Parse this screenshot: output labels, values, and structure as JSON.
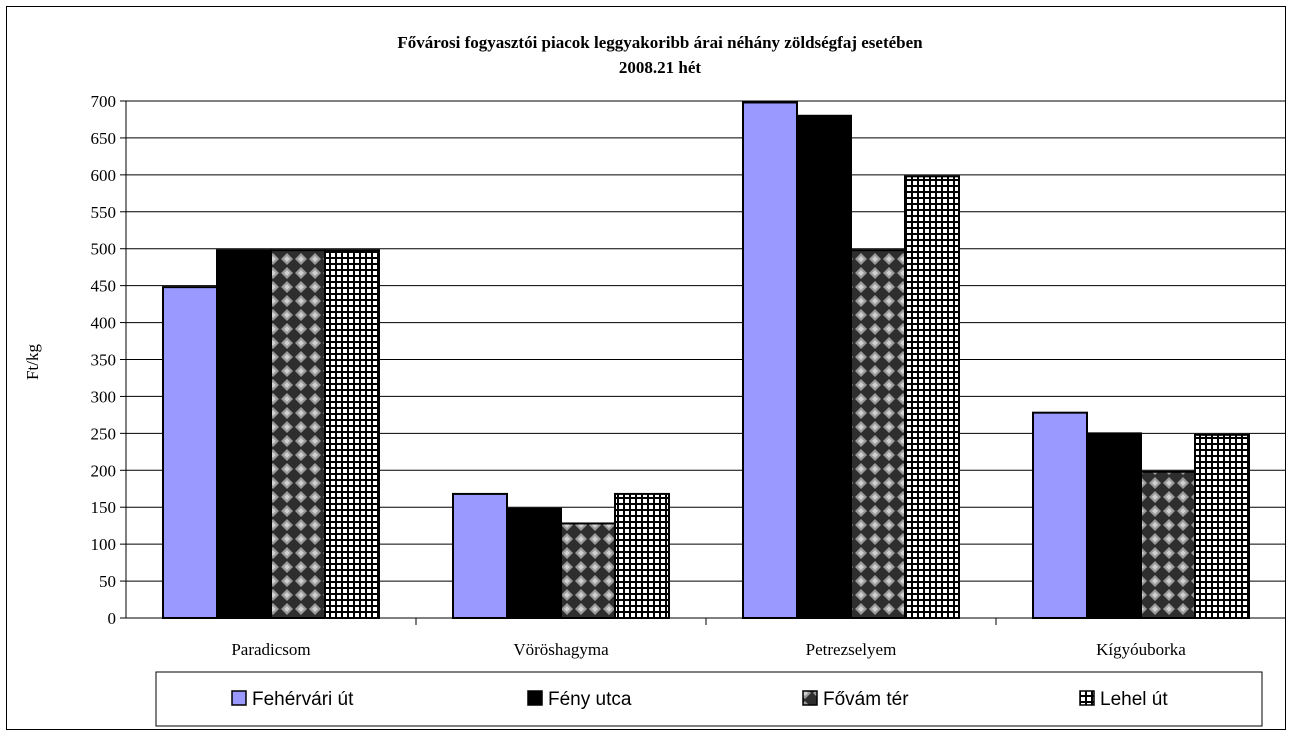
{
  "chart_data": {
    "type": "bar",
    "title": "Fővárosi fogyasztói piacok leggyakoribb árai néhány zöldségfaj esetében",
    "subtitle": "2008.21 hét",
    "xlabel": "",
    "ylabel": "Ft/kg",
    "ylim": [
      0,
      700
    ],
    "ytick_step": 50,
    "grid": true,
    "legend_position": "bottom",
    "categories": [
      "Paradicsom",
      "Vöröshagyma",
      "Petrezselyem",
      "Kígyóuborka"
    ],
    "series": [
      {
        "name": "Fehérvári út",
        "values": [
          448,
          168,
          698,
          278
        ],
        "fill": "#9999ff",
        "pattern": "solid"
      },
      {
        "name": "Fény utca",
        "values": [
          498,
          148,
          680,
          250
        ],
        "fill": "#000000",
        "pattern": "solid"
      },
      {
        "name": "Fővám tér",
        "values": [
          498,
          128,
          498,
          198
        ],
        "fill": "#333333",
        "pattern": "diamond"
      },
      {
        "name": "Lehel út",
        "values": [
          498,
          168,
          598,
          248
        ],
        "fill": "#000000",
        "pattern": "grid"
      }
    ]
  }
}
